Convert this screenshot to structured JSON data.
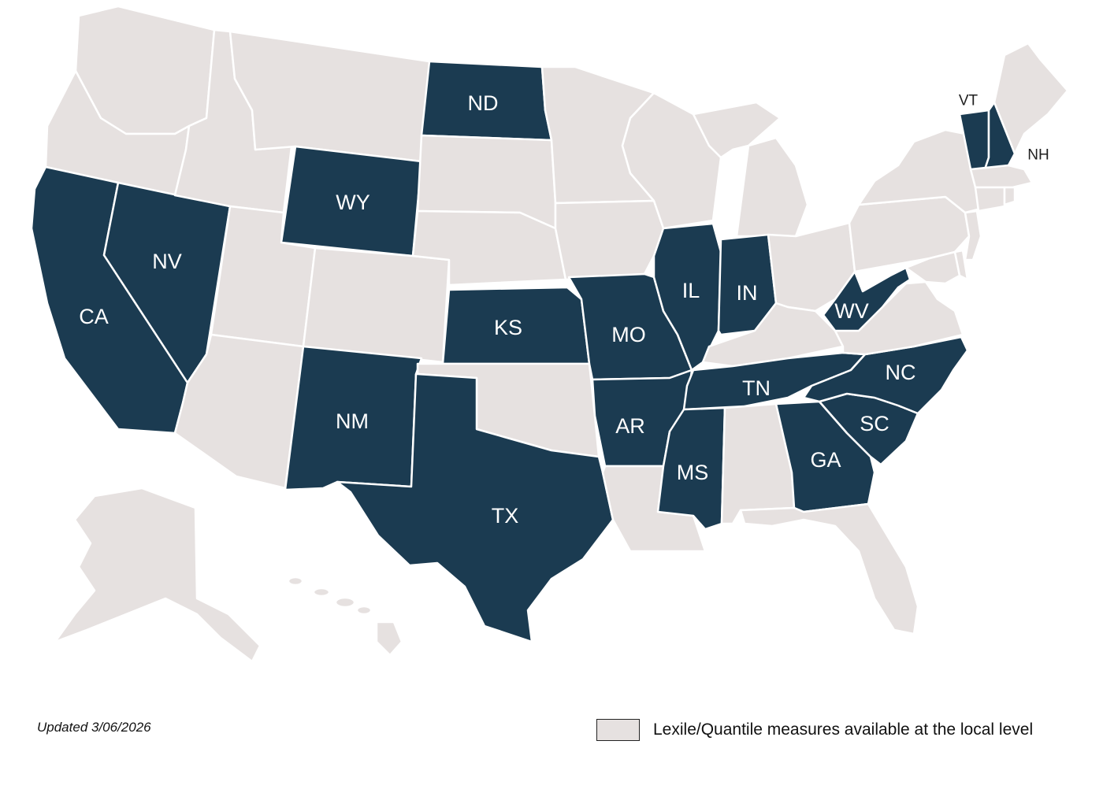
{
  "colors": {
    "highlight": "#1b3b51",
    "land": "#e6e1e0",
    "border": "#ffffff",
    "label_inside": "#ffffff",
    "label_outside": "#1f1f1f"
  },
  "states": [
    {
      "abbr": "WA",
      "highlighted": false
    },
    {
      "abbr": "OR",
      "highlighted": false
    },
    {
      "abbr": "CA",
      "highlighted": true
    },
    {
      "abbr": "NV",
      "highlighted": true
    },
    {
      "abbr": "ID",
      "highlighted": false
    },
    {
      "abbr": "MT",
      "highlighted": false
    },
    {
      "abbr": "WY",
      "highlighted": true
    },
    {
      "abbr": "UT",
      "highlighted": false
    },
    {
      "abbr": "CO",
      "highlighted": false
    },
    {
      "abbr": "AZ",
      "highlighted": false
    },
    {
      "abbr": "NM",
      "highlighted": true
    },
    {
      "abbr": "ND",
      "highlighted": true
    },
    {
      "abbr": "SD",
      "highlighted": false
    },
    {
      "abbr": "NE",
      "highlighted": false
    },
    {
      "abbr": "KS",
      "highlighted": true
    },
    {
      "abbr": "OK",
      "highlighted": false
    },
    {
      "abbr": "TX",
      "highlighted": true
    },
    {
      "abbr": "MN",
      "highlighted": false
    },
    {
      "abbr": "IA",
      "highlighted": false
    },
    {
      "abbr": "MO",
      "highlighted": true
    },
    {
      "abbr": "AR",
      "highlighted": true
    },
    {
      "abbr": "LA",
      "highlighted": false
    },
    {
      "abbr": "WI",
      "highlighted": false
    },
    {
      "abbr": "IL",
      "highlighted": true
    },
    {
      "abbr": "MI",
      "highlighted": false
    },
    {
      "abbr": "IN",
      "highlighted": true
    },
    {
      "abbr": "OH",
      "highlighted": false
    },
    {
      "abbr": "KY",
      "highlighted": false
    },
    {
      "abbr": "TN",
      "highlighted": true
    },
    {
      "abbr": "MS",
      "highlighted": true
    },
    {
      "abbr": "AL",
      "highlighted": false
    },
    {
      "abbr": "GA",
      "highlighted": true
    },
    {
      "abbr": "FL",
      "highlighted": false
    },
    {
      "abbr": "SC",
      "highlighted": true
    },
    {
      "abbr": "NC",
      "highlighted": true
    },
    {
      "abbr": "VA",
      "highlighted": false
    },
    {
      "abbr": "WV",
      "highlighted": true
    },
    {
      "abbr": "PA",
      "highlighted": false
    },
    {
      "abbr": "NY",
      "highlighted": false
    },
    {
      "abbr": "VT",
      "highlighted": true
    },
    {
      "abbr": "NH",
      "highlighted": true
    },
    {
      "abbr": "ME",
      "highlighted": false
    },
    {
      "abbr": "MA",
      "highlighted": false
    },
    {
      "abbr": "CT",
      "highlighted": false
    },
    {
      "abbr": "RI",
      "highlighted": false
    },
    {
      "abbr": "NJ",
      "highlighted": false
    },
    {
      "abbr": "DE",
      "highlighted": false
    },
    {
      "abbr": "MD",
      "highlighted": false
    },
    {
      "abbr": "AK",
      "highlighted": false
    },
    {
      "abbr": "HI",
      "highlighted": false
    }
  ],
  "labels": [
    "CA",
    "NV",
    "WY",
    "NM",
    "ND",
    "KS",
    "TX",
    "MO",
    "AR",
    "IL",
    "IN",
    "TN",
    "MS",
    "GA",
    "SC",
    "NC",
    "WV",
    "VT",
    "NH"
  ],
  "updated_text": "Updated 3/06/2026",
  "legend": {
    "label": "Lexile/Quantile measures available at the local level"
  }
}
